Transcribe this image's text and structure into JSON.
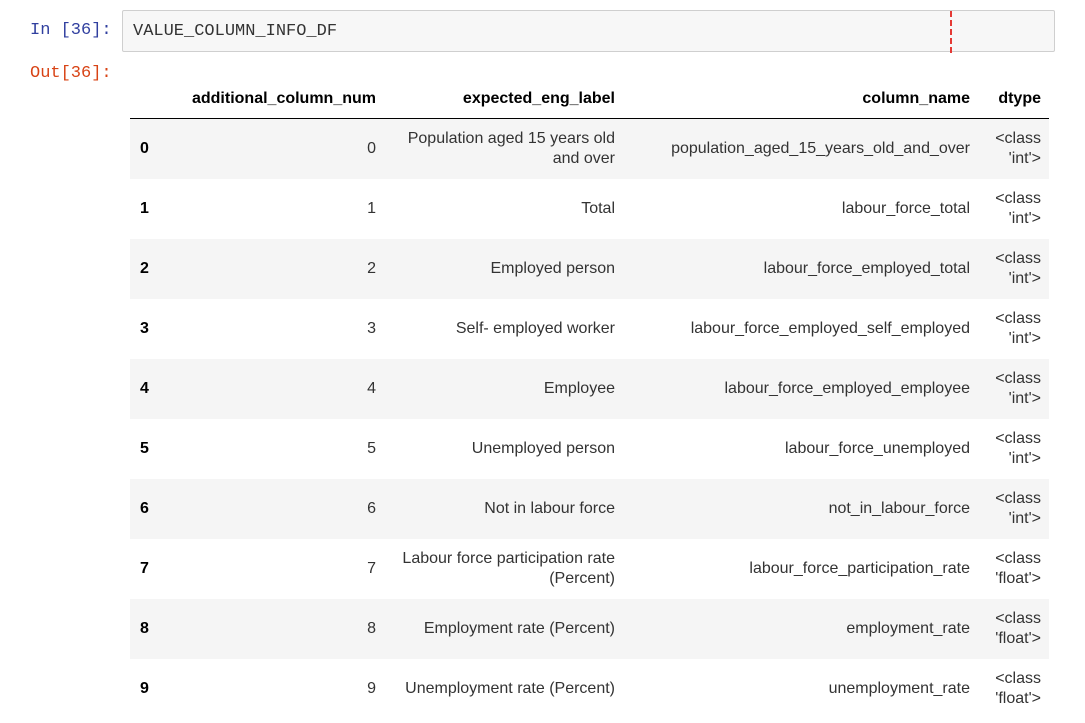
{
  "cell": {
    "input_prompt": "In [36]:",
    "code": "VALUE_COLUMN_INFO_DF",
    "output_prompt": "Out[36]:"
  },
  "table": {
    "columns": [
      "additional_column_num",
      "expected_eng_label",
      "column_name",
      "dtype"
    ],
    "rows": [
      [
        0,
        0,
        "Population aged 15 years old and over",
        "population_aged_15_years_old_and_over",
        "<class 'int'>"
      ],
      [
        1,
        1,
        "Total",
        "labour_force_total",
        "<class 'int'>"
      ],
      [
        2,
        2,
        "Employed person",
        "labour_force_employed_total",
        "<class 'int'>"
      ],
      [
        3,
        3,
        "Self- employed worker",
        "labour_force_employed_self_employed",
        "<class 'int'>"
      ],
      [
        4,
        4,
        "Employee",
        "labour_force_employed_employee",
        "<class 'int'>"
      ],
      [
        5,
        5,
        "Unemployed person",
        "labour_force_unemployed",
        "<class 'int'>"
      ],
      [
        6,
        6,
        "Not in labour force",
        "not_in_labour_force",
        "<class 'int'>"
      ],
      [
        7,
        7,
        "Labour force participation rate (Percent)",
        "labour_force_participation_rate",
        "<class 'float'>"
      ],
      [
        8,
        8,
        "Employment rate (Percent)",
        "employment_rate",
        "<class 'float'>"
      ],
      [
        9,
        9,
        "Unemployment rate (Percent)",
        "unemployment_rate",
        "<class 'float'>"
      ]
    ]
  }
}
